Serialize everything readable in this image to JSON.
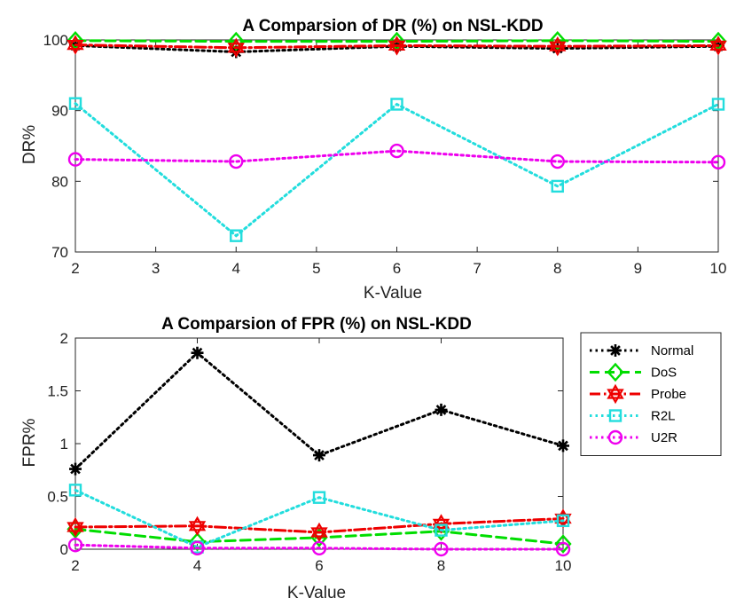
{
  "chart_data": [
    {
      "type": "line",
      "title": "A Comparsion of DR (%) on NSL-KDD",
      "xlabel": "K-Value",
      "ylabel": "DR%",
      "xlim": [
        2,
        10
      ],
      "ylim": [
        70,
        100
      ],
      "xticks": [
        "2",
        "3",
        "4",
        "5",
        "6",
        "7",
        "8",
        "9",
        "10"
      ],
      "yticks": [
        "70",
        "80",
        "90",
        "100"
      ],
      "x": [
        2,
        4,
        6,
        8,
        10
      ],
      "series": [
        {
          "name": "Normal",
          "color": "#000000",
          "marker": "asterisk",
          "dash": "dotted",
          "values": [
            99.2,
            98.3,
            99.1,
            98.8,
            99.1
          ]
        },
        {
          "name": "DoS",
          "color": "#00dd00",
          "marker": "diamond",
          "dash": "dashed",
          "values": [
            99.9,
            99.8,
            99.8,
            99.9,
            99.8
          ]
        },
        {
          "name": "Probe",
          "color": "#ee0000",
          "marker": "hexagram",
          "dash": "dashdot",
          "values": [
            99.3,
            98.9,
            99.2,
            99.1,
            99.2
          ]
        },
        {
          "name": "R2L",
          "color": "#22dddd",
          "marker": "square",
          "dash": "dotted",
          "values": [
            91.0,
            72.3,
            90.9,
            79.3,
            90.9
          ]
        },
        {
          "name": "U2R",
          "color": "#ee00ee",
          "marker": "circle",
          "dash": "dotted",
          "values": [
            83.1,
            82.8,
            84.3,
            82.8,
            82.7
          ]
        }
      ]
    },
    {
      "type": "line",
      "title": "A Comparsion of FPR (%) on NSL-KDD",
      "xlabel": "K-Value",
      "ylabel": "FPR%",
      "xlim": [
        2,
        10
      ],
      "ylim": [
        0,
        2
      ],
      "xticks": [
        "2",
        "4",
        "6",
        "8",
        "10"
      ],
      "yticks": [
        "0",
        "0.5",
        "1",
        "1.5",
        "2"
      ],
      "x": [
        2,
        4,
        6,
        8,
        10
      ],
      "legend": "right",
      "series": [
        {
          "name": "Normal",
          "color": "#000000",
          "marker": "asterisk",
          "dash": "dotted",
          "values": [
            0.76,
            1.86,
            0.89,
            1.32,
            0.98
          ]
        },
        {
          "name": "DoS",
          "color": "#00dd00",
          "marker": "diamond",
          "dash": "dashed",
          "values": [
            0.19,
            0.07,
            0.11,
            0.17,
            0.05
          ]
        },
        {
          "name": "Probe",
          "color": "#ee0000",
          "marker": "hexagram",
          "dash": "dashdot",
          "values": [
            0.21,
            0.22,
            0.16,
            0.24,
            0.29
          ]
        },
        {
          "name": "R2L",
          "color": "#22dddd",
          "marker": "square",
          "dash": "dotted",
          "values": [
            0.56,
            0.02,
            0.49,
            0.18,
            0.27
          ]
        },
        {
          "name": "U2R",
          "color": "#ee00ee",
          "marker": "circle",
          "dash": "dotted",
          "values": [
            0.04,
            0.01,
            0.01,
            0.0,
            0.0
          ]
        }
      ]
    }
  ]
}
